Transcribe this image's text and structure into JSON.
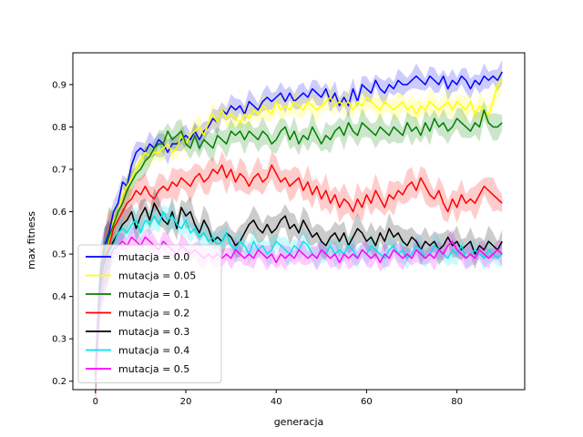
{
  "chart_data": {
    "type": "line",
    "title": "",
    "xlabel": "generacja",
    "ylabel": "max fitness",
    "xlim": [
      -5,
      95
    ],
    "ylim": [
      0.18,
      0.975
    ],
    "xticks": [
      0,
      20,
      40,
      60,
      80
    ],
    "yticks": [
      0.2,
      0.3,
      0.4,
      0.5,
      0.6,
      0.7,
      0.8,
      0.9
    ],
    "grid": false,
    "legend_position": "lower-left",
    "x_range": [
      0,
      90
    ],
    "series": [
      {
        "name": "mutacja = 0.0",
        "color": "#0000ff",
        "band": 0.022,
        "values": [
          0.22,
          0.45,
          0.52,
          0.55,
          0.6,
          0.62,
          0.67,
          0.66,
          0.71,
          0.74,
          0.75,
          0.74,
          0.76,
          0.75,
          0.77,
          0.76,
          0.74,
          0.76,
          0.76,
          0.77,
          0.78,
          0.77,
          0.79,
          0.77,
          0.79,
          0.8,
          0.82,
          0.81,
          0.84,
          0.83,
          0.85,
          0.84,
          0.85,
          0.83,
          0.86,
          0.85,
          0.84,
          0.86,
          0.87,
          0.86,
          0.87,
          0.88,
          0.86,
          0.88,
          0.86,
          0.87,
          0.88,
          0.87,
          0.89,
          0.88,
          0.87,
          0.89,
          0.86,
          0.88,
          0.85,
          0.87,
          0.85,
          0.89,
          0.86,
          0.9,
          0.89,
          0.88,
          0.91,
          0.89,
          0.88,
          0.9,
          0.89,
          0.91,
          0.9,
          0.9,
          0.91,
          0.92,
          0.91,
          0.9,
          0.92,
          0.91,
          0.9,
          0.92,
          0.89,
          0.91,
          0.9,
          0.92,
          0.91,
          0.89,
          0.91,
          0.9,
          0.92,
          0.91,
          0.92,
          0.91,
          0.93
        ]
      },
      {
        "name": "mutacja = 0.05",
        "color": "#ffff00",
        "band": 0.024,
        "values": [
          0.21,
          0.42,
          0.5,
          0.53,
          0.58,
          0.6,
          0.64,
          0.66,
          0.68,
          0.7,
          0.72,
          0.74,
          0.73,
          0.74,
          0.74,
          0.75,
          0.76,
          0.74,
          0.75,
          0.78,
          0.76,
          0.78,
          0.79,
          0.8,
          0.78,
          0.81,
          0.83,
          0.81,
          0.84,
          0.82,
          0.83,
          0.82,
          0.81,
          0.83,
          0.82,
          0.84,
          0.83,
          0.85,
          0.84,
          0.83,
          0.86,
          0.84,
          0.85,
          0.84,
          0.86,
          0.85,
          0.84,
          0.86,
          0.85,
          0.84,
          0.85,
          0.86,
          0.87,
          0.85,
          0.86,
          0.85,
          0.86,
          0.84,
          0.86,
          0.85,
          0.87,
          0.86,
          0.85,
          0.84,
          0.86,
          0.85,
          0.84,
          0.85,
          0.86,
          0.84,
          0.85,
          0.83,
          0.85,
          0.84,
          0.86,
          0.85,
          0.84,
          0.85,
          0.86,
          0.84,
          0.86,
          0.85,
          0.84,
          0.86,
          0.83,
          0.85,
          0.84,
          0.83,
          0.86,
          0.9,
          0.91
        ]
      },
      {
        "name": "mutacja = 0.1",
        "color": "#008000",
        "band": 0.026,
        "values": [
          0.21,
          0.43,
          0.5,
          0.54,
          0.57,
          0.6,
          0.62,
          0.65,
          0.67,
          0.69,
          0.7,
          0.72,
          0.73,
          0.75,
          0.76,
          0.76,
          0.79,
          0.77,
          0.78,
          0.79,
          0.76,
          0.75,
          0.78,
          0.75,
          0.77,
          0.76,
          0.75,
          0.78,
          0.77,
          0.76,
          0.79,
          0.78,
          0.79,
          0.77,
          0.79,
          0.78,
          0.77,
          0.79,
          0.78,
          0.76,
          0.77,
          0.79,
          0.8,
          0.77,
          0.79,
          0.76,
          0.78,
          0.77,
          0.8,
          0.78,
          0.76,
          0.78,
          0.77,
          0.79,
          0.8,
          0.78,
          0.81,
          0.79,
          0.78,
          0.81,
          0.8,
          0.79,
          0.78,
          0.8,
          0.79,
          0.78,
          0.8,
          0.79,
          0.78,
          0.81,
          0.79,
          0.8,
          0.78,
          0.81,
          0.79,
          0.82,
          0.8,
          0.81,
          0.79,
          0.8,
          0.82,
          0.81,
          0.8,
          0.79,
          0.81,
          0.8,
          0.84,
          0.81,
          0.8,
          0.8,
          0.81
        ]
      },
      {
        "name": "mutacja = 0.2",
        "color": "#ff0000",
        "band": 0.03,
        "values": [
          0.21,
          0.42,
          0.49,
          0.52,
          0.56,
          0.58,
          0.6,
          0.62,
          0.63,
          0.65,
          0.64,
          0.66,
          0.64,
          0.63,
          0.65,
          0.66,
          0.65,
          0.67,
          0.66,
          0.68,
          0.67,
          0.66,
          0.68,
          0.69,
          0.67,
          0.68,
          0.7,
          0.69,
          0.71,
          0.68,
          0.7,
          0.67,
          0.69,
          0.68,
          0.66,
          0.68,
          0.69,
          0.67,
          0.68,
          0.71,
          0.69,
          0.67,
          0.68,
          0.66,
          0.67,
          0.68,
          0.65,
          0.67,
          0.64,
          0.66,
          0.63,
          0.65,
          0.62,
          0.64,
          0.61,
          0.63,
          0.62,
          0.6,
          0.63,
          0.61,
          0.64,
          0.62,
          0.65,
          0.63,
          0.61,
          0.64,
          0.63,
          0.65,
          0.64,
          0.66,
          0.67,
          0.65,
          0.68,
          0.66,
          0.64,
          0.63,
          0.65,
          0.62,
          0.6,
          0.63,
          0.61,
          0.64,
          0.62,
          0.63,
          0.62,
          0.64,
          0.66,
          0.65,
          0.64,
          0.63,
          0.62
        ]
      },
      {
        "name": "mutacja = 0.3",
        "color": "#000000",
        "band": 0.028,
        "values": [
          0.21,
          0.42,
          0.48,
          0.51,
          0.53,
          0.55,
          0.57,
          0.58,
          0.6,
          0.56,
          0.59,
          0.61,
          0.58,
          0.62,
          0.6,
          0.58,
          0.57,
          0.6,
          0.56,
          0.61,
          0.59,
          0.6,
          0.57,
          0.55,
          0.58,
          0.56,
          0.53,
          0.54,
          0.53,
          0.55,
          0.54,
          0.52,
          0.53,
          0.55,
          0.57,
          0.58,
          0.56,
          0.55,
          0.57,
          0.55,
          0.56,
          0.58,
          0.59,
          0.56,
          0.57,
          0.55,
          0.58,
          0.56,
          0.54,
          0.55,
          0.53,
          0.52,
          0.54,
          0.55,
          0.53,
          0.55,
          0.52,
          0.54,
          0.56,
          0.55,
          0.53,
          0.54,
          0.52,
          0.55,
          0.53,
          0.56,
          0.54,
          0.55,
          0.53,
          0.52,
          0.54,
          0.53,
          0.51,
          0.53,
          0.52,
          0.53,
          0.51,
          0.52,
          0.54,
          0.52,
          0.53,
          0.51,
          0.52,
          0.53,
          0.5,
          0.52,
          0.51,
          0.53,
          0.52,
          0.51,
          0.53
        ]
      },
      {
        "name": "mutacja = 0.4",
        "color": "#00e5ee",
        "band": 0.024,
        "values": [
          0.21,
          0.4,
          0.47,
          0.5,
          0.52,
          0.55,
          0.56,
          0.55,
          0.57,
          0.58,
          0.55,
          0.58,
          0.57,
          0.59,
          0.57,
          0.6,
          0.58,
          0.59,
          0.57,
          0.56,
          0.58,
          0.55,
          0.56,
          0.54,
          0.55,
          0.53,
          0.54,
          0.52,
          0.53,
          0.55,
          0.52,
          0.51,
          0.53,
          0.52,
          0.5,
          0.53,
          0.51,
          0.52,
          0.5,
          0.51,
          0.53,
          0.52,
          0.51,
          0.5,
          0.52,
          0.51,
          0.53,
          0.52,
          0.5,
          0.49,
          0.51,
          0.5,
          0.52,
          0.5,
          0.51,
          0.5,
          0.52,
          0.51,
          0.49,
          0.51,
          0.5,
          0.52,
          0.51,
          0.5,
          0.49,
          0.51,
          0.52,
          0.5,
          0.51,
          0.49,
          0.5,
          0.52,
          0.51,
          0.49,
          0.5,
          0.52,
          0.51,
          0.5,
          0.49,
          0.51,
          0.5,
          0.52,
          0.49,
          0.5,
          0.51,
          0.5,
          0.49,
          0.51,
          0.5,
          0.49,
          0.5
        ]
      },
      {
        "name": "mutacja = 0.5",
        "color": "#ff00ff",
        "band": 0.022,
        "values": [
          0.2,
          0.39,
          0.46,
          0.49,
          0.51,
          0.52,
          0.53,
          0.52,
          0.54,
          0.53,
          0.52,
          0.54,
          0.53,
          0.52,
          0.51,
          0.53,
          0.52,
          0.51,
          0.5,
          0.52,
          0.51,
          0.5,
          0.51,
          0.5,
          0.49,
          0.5,
          0.49,
          0.5,
          0.49,
          0.5,
          0.49,
          0.51,
          0.5,
          0.49,
          0.5,
          0.49,
          0.51,
          0.5,
          0.49,
          0.5,
          0.48,
          0.5,
          0.49,
          0.5,
          0.49,
          0.51,
          0.5,
          0.49,
          0.5,
          0.49,
          0.51,
          0.5,
          0.49,
          0.5,
          0.48,
          0.5,
          0.49,
          0.5,
          0.49,
          0.51,
          0.5,
          0.49,
          0.5,
          0.48,
          0.5,
          0.49,
          0.51,
          0.5,
          0.49,
          0.5,
          0.49,
          0.51,
          0.5,
          0.49,
          0.5,
          0.49,
          0.51,
          0.5,
          0.52,
          0.53,
          0.51,
          0.5,
          0.49,
          0.5,
          0.49,
          0.51,
          0.5,
          0.49,
          0.5,
          0.51,
          0.5
        ]
      }
    ]
  }
}
